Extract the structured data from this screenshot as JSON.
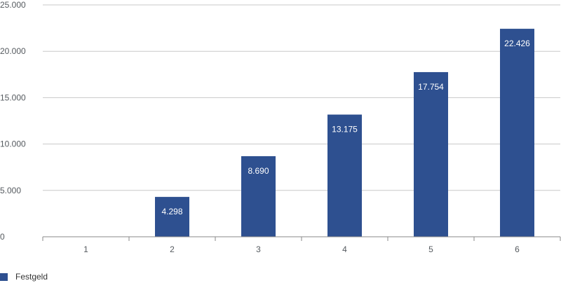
{
  "chart_data": {
    "type": "bar",
    "title": "",
    "xlabel": "",
    "ylabel": "",
    "categories": [
      "1",
      "2",
      "3",
      "4",
      "5",
      "6"
    ],
    "series": [
      {
        "name": "Festgeld",
        "values": [
          0,
          4298,
          8690,
          13175,
          17754,
          22426
        ],
        "data_labels": [
          "",
          "4.298",
          "8.690",
          "13.175",
          "17.754",
          "22.426"
        ]
      }
    ],
    "y_ticks": [
      0,
      5000,
      10000,
      15000,
      20000,
      25000
    ],
    "y_tick_labels": [
      "0",
      "5.000",
      "10.000",
      "15.000",
      "20.000",
      "25.000"
    ],
    "ylim": [
      0,
      25000
    ],
    "grid": true,
    "legend_position": "bottom-left",
    "colors": {
      "bar": "#2e5090",
      "grid": "#c8c8c8",
      "axis": "#8a8a8a",
      "tick_text": "#555a5f",
      "bar_label_text": "#ffffff"
    }
  }
}
